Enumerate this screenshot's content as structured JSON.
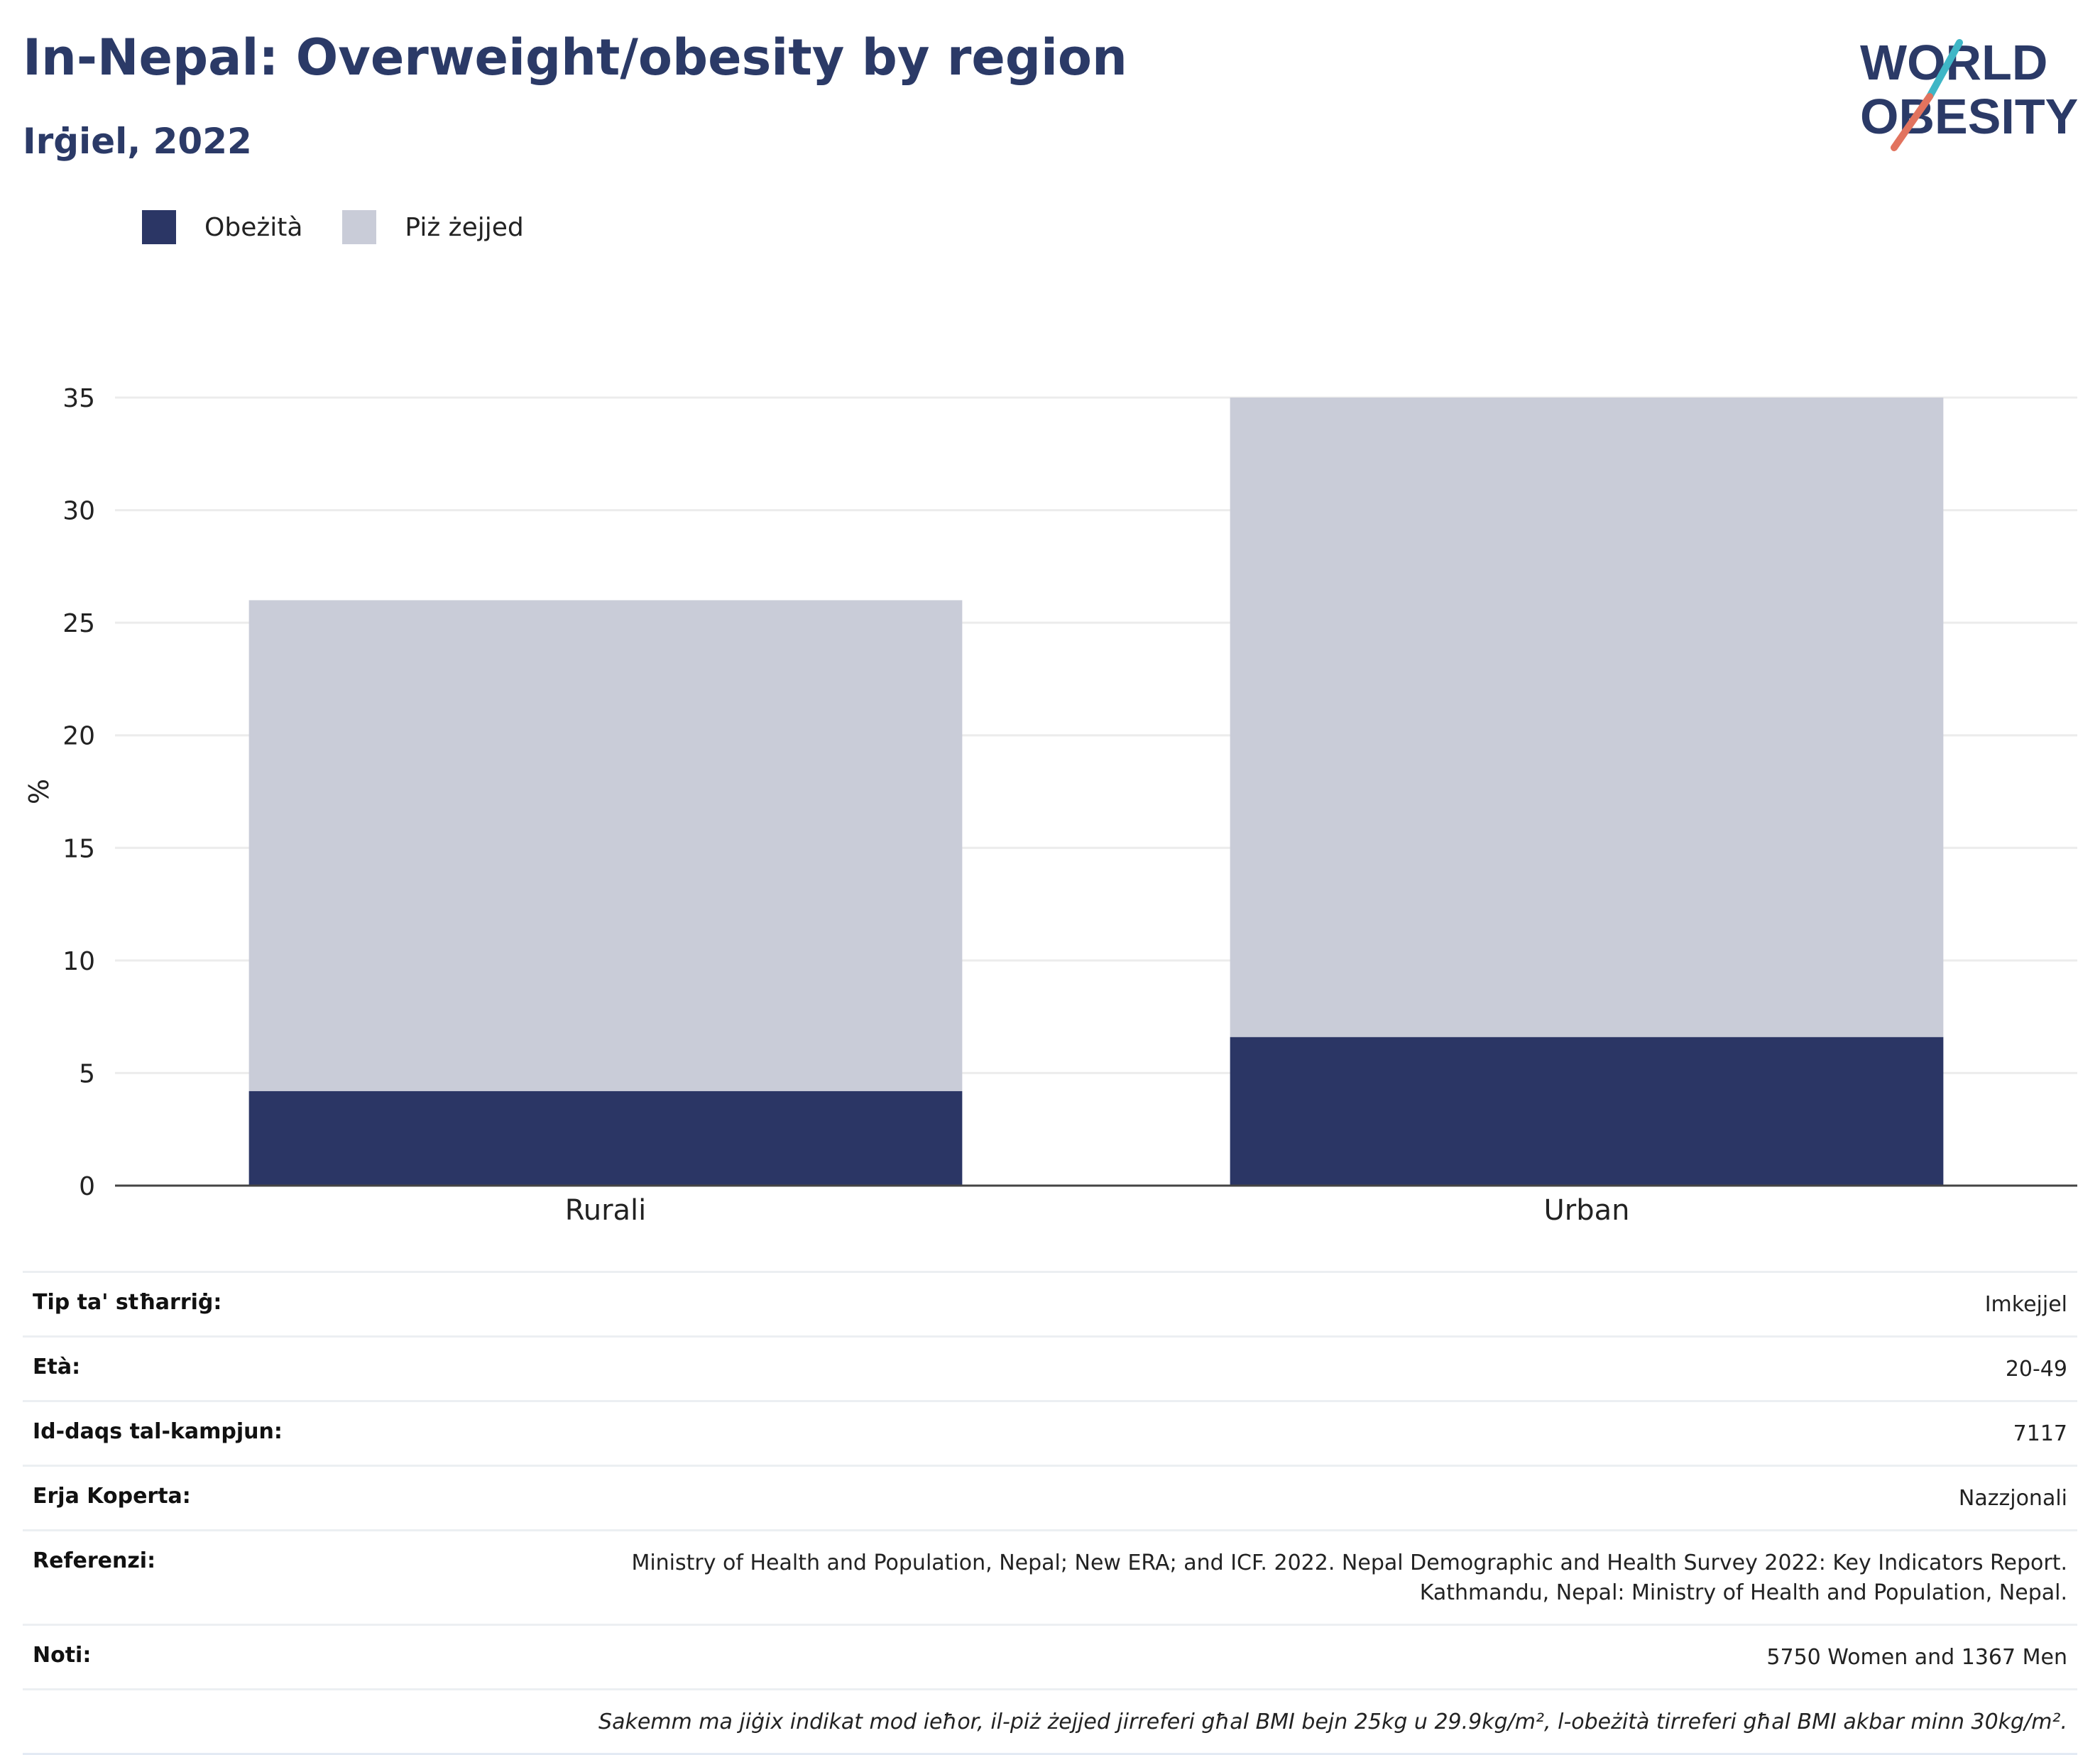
{
  "header": {
    "title": "In-Nepal: Overweight/obesity by region",
    "subtitle": "Irġiel, 2022"
  },
  "logo": {
    "line1": "WORLD",
    "line2": "OBESITY"
  },
  "colors": {
    "obesity": "#2b3665",
    "overweight": "#c9ccd8",
    "title": "#2b3a67",
    "grid": "#ececec"
  },
  "chart_data": {
    "type": "bar",
    "stacked": true,
    "categories": [
      "Rurali",
      "Urban"
    ],
    "series": [
      {
        "name": "Obeżità",
        "values": [
          4.2,
          6.6
        ],
        "color": "#2b3665"
      },
      {
        "name": "Piż żejjed",
        "values": [
          21.8,
          28.4
        ],
        "color": "#c9ccd8"
      }
    ],
    "ylabel": "%",
    "ylim": [
      0,
      35
    ],
    "yticks": [
      0,
      5,
      10,
      15,
      20,
      25,
      30,
      35
    ],
    "grid": true,
    "legend_position": "top-left"
  },
  "info": {
    "rows": [
      {
        "key": "Tip ta' stħarriġ:",
        "value": "Imkejjel"
      },
      {
        "key": "Età:",
        "value": "20-49"
      },
      {
        "key": "Id-daqs tal-kampjun:",
        "value": "7117"
      },
      {
        "key": "Erja Koperta:",
        "value": "Nazzjonali"
      },
      {
        "key": "Referenzi:",
        "value": "Ministry of Health and Population, Nepal; New ERA; and ICF. 2022. Nepal Demographic and Health Survey 2022: Key Indicators Report.",
        "value2": "Kathmandu, Nepal: Ministry of Health and Population, Nepal."
      },
      {
        "key": "Noti:",
        "value": "5750 Women and 1367 Men"
      }
    ],
    "footnote": "Sakemm ma jiġix indikat mod ieħor, il-piż żejjed jirreferi għal BMI bejn 25kg u 29.9kg/m², l-obeżità tirreferi għal BMI akbar minn 30kg/m²."
  }
}
